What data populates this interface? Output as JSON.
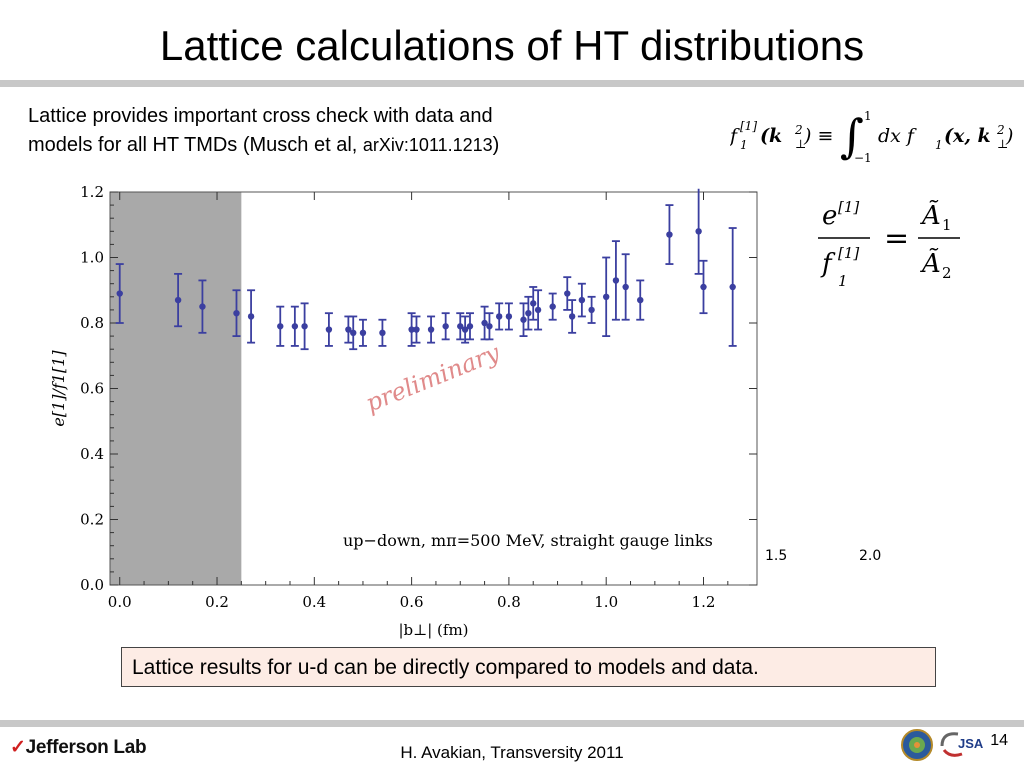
{
  "slide": {
    "title": "Lattice calculations of HT distributions",
    "intro_line1": "Lattice provides important cross check with data and",
    "intro_line2a": "models for  all HT  TMDs  (Musch et al, ",
    "intro_arxiv": "arXiv:1011.1213",
    "intro_line2b": ")",
    "callout": "Lattice results for u-d can be directly compared to models and data.",
    "footer": "H. Avakian, Transversity 2011",
    "page_number": "14",
    "logo_text": "Jefferson Lab",
    "jsa_text": "JSA"
  },
  "formulas": {
    "f_def_lhs": "f",
    "f_def_sup": "[1]",
    "f_def_sub": "1",
    "f_def_arg": "(k",
    "f_def_argsub": "⊥",
    "f_def_argsup": "2",
    "f_def_eq": ") ≡ ",
    "int_upper": "1",
    "int_lower": "−1",
    "f_def_rhs": "dx  f",
    "f_def_rhs_sub": "1",
    "f_def_rhs_arg": "(x, k",
    "ratio_num": "e",
    "ratio_num_sup": "[1]",
    "ratio_den": "f",
    "ratio_den_sup": "[1]",
    "ratio_den_sub": "1",
    "ratio_eq": "=",
    "ratio_rhs_num": "Ã",
    "ratio_rhs_num_sub": "1",
    "ratio_rhs_den": "Ã",
    "ratio_rhs_den_sub": "2"
  },
  "chart_data": {
    "type": "scatter",
    "xlabel": "|b⊥|  (fm)",
    "ylabel": "e[1]/f1[1]",
    "xlim": [
      -0.02,
      1.31
    ],
    "ylim": [
      0.0,
      1.2
    ],
    "xticks": [
      "0.0",
      "0.2",
      "0.4",
      "0.6",
      "0.8",
      "1.0",
      "1.2"
    ],
    "yticks": [
      "0.0",
      "0.2",
      "0.4",
      "0.6",
      "0.8",
      "1.0",
      "1.2"
    ],
    "extra_xticks": [
      "1.5",
      "2.0"
    ],
    "shaded_region_x": [
      -0.02,
      0.25
    ],
    "annotation": "up−down, mπ=500 MeV, straight gauge links",
    "watermark": "preliminary",
    "marker_color": "#3b3fa0",
    "points": [
      {
        "x": 0.0,
        "y": 0.89,
        "err": 0.09
      },
      {
        "x": 0.12,
        "y": 0.87,
        "err": 0.08
      },
      {
        "x": 0.17,
        "y": 0.85,
        "err": 0.08
      },
      {
        "x": 0.24,
        "y": 0.83,
        "err": 0.07
      },
      {
        "x": 0.27,
        "y": 0.82,
        "err": 0.08
      },
      {
        "x": 0.33,
        "y": 0.79,
        "err": 0.06
      },
      {
        "x": 0.36,
        "y": 0.79,
        "err": 0.06
      },
      {
        "x": 0.38,
        "y": 0.79,
        "err": 0.07
      },
      {
        "x": 0.43,
        "y": 0.78,
        "err": 0.05
      },
      {
        "x": 0.47,
        "y": 0.78,
        "err": 0.04
      },
      {
        "x": 0.48,
        "y": 0.77,
        "err": 0.05
      },
      {
        "x": 0.5,
        "y": 0.77,
        "err": 0.04
      },
      {
        "x": 0.54,
        "y": 0.77,
        "err": 0.04
      },
      {
        "x": 0.6,
        "y": 0.78,
        "err": 0.05
      },
      {
        "x": 0.61,
        "y": 0.78,
        "err": 0.04
      },
      {
        "x": 0.64,
        "y": 0.78,
        "err": 0.04
      },
      {
        "x": 0.67,
        "y": 0.79,
        "err": 0.04
      },
      {
        "x": 0.7,
        "y": 0.79,
        "err": 0.04
      },
      {
        "x": 0.71,
        "y": 0.78,
        "err": 0.04
      },
      {
        "x": 0.72,
        "y": 0.79,
        "err": 0.04
      },
      {
        "x": 0.75,
        "y": 0.8,
        "err": 0.05
      },
      {
        "x": 0.76,
        "y": 0.79,
        "err": 0.04
      },
      {
        "x": 0.78,
        "y": 0.82,
        "err": 0.04
      },
      {
        "x": 0.8,
        "y": 0.82,
        "err": 0.04
      },
      {
        "x": 0.83,
        "y": 0.81,
        "err": 0.05
      },
      {
        "x": 0.84,
        "y": 0.83,
        "err": 0.05
      },
      {
        "x": 0.85,
        "y": 0.86,
        "err": 0.05
      },
      {
        "x": 0.86,
        "y": 0.84,
        "err": 0.06
      },
      {
        "x": 0.89,
        "y": 0.85,
        "err": 0.04
      },
      {
        "x": 0.92,
        "y": 0.89,
        "err": 0.05
      },
      {
        "x": 0.93,
        "y": 0.82,
        "err": 0.05
      },
      {
        "x": 0.95,
        "y": 0.87,
        "err": 0.05
      },
      {
        "x": 0.97,
        "y": 0.84,
        "err": 0.04
      },
      {
        "x": 1.0,
        "y": 0.88,
        "err": 0.12
      },
      {
        "x": 1.02,
        "y": 0.93,
        "err": 0.12
      },
      {
        "x": 1.04,
        "y": 0.91,
        "err": 0.1
      },
      {
        "x": 1.07,
        "y": 0.87,
        "err": 0.06
      },
      {
        "x": 1.13,
        "y": 1.07,
        "err": 0.09
      },
      {
        "x": 1.19,
        "y": 1.08,
        "err": 0.13
      },
      {
        "x": 1.2,
        "y": 0.91,
        "err": 0.08
      },
      {
        "x": 1.26,
        "y": 0.91,
        "err": 0.18
      }
    ]
  }
}
